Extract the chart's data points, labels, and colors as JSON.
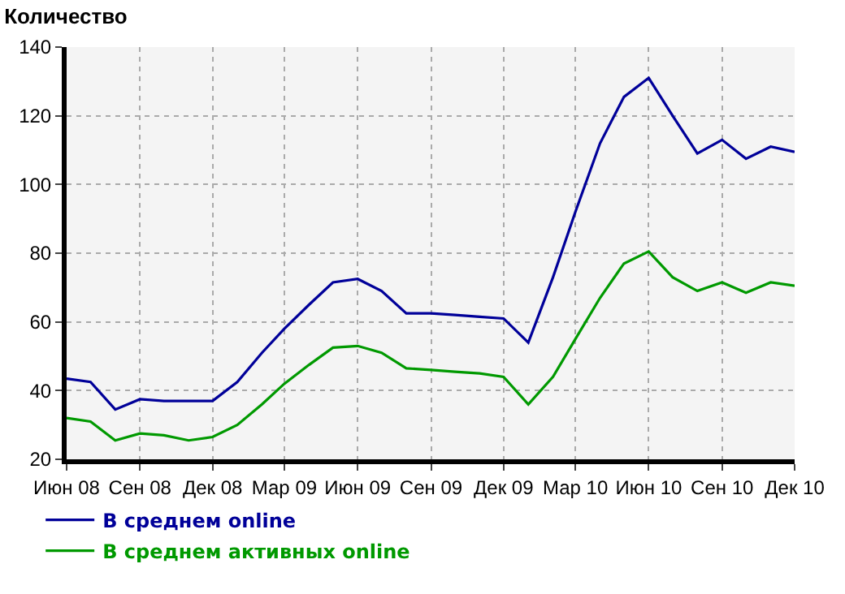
{
  "chart_data": {
    "type": "line",
    "title": "Количество",
    "x": [
      "2008-06",
      "2008-07",
      "2008-08",
      "2008-09",
      "2008-10",
      "2008-11",
      "2008-12",
      "2009-01",
      "2009-02",
      "2009-03",
      "2009-04",
      "2009-05",
      "2009-06",
      "2009-07",
      "2009-08",
      "2009-09",
      "2009-10",
      "2009-11",
      "2009-12",
      "2010-01",
      "2010-02",
      "2010-03",
      "2010-04",
      "2010-05",
      "2010-06",
      "2010-07",
      "2010-08",
      "2010-09",
      "2010-10",
      "2010-11",
      "2010-12"
    ],
    "series": [
      {
        "name": "В среднем online",
        "color": "#000099",
        "values": [
          43.5,
          42.5,
          34.5,
          37.5,
          37,
          37,
          37,
          42.5,
          51,
          58,
          65,
          71.5,
          72.5,
          69,
          62.5,
          62.5,
          62,
          61.5,
          61,
          54,
          73,
          92,
          112,
          125.5,
          131,
          120,
          109,
          113,
          107.5,
          111,
          109.5
        ]
      },
      {
        "name": "В среднем активных online",
        "color": "#009900",
        "values": [
          32,
          31,
          25.5,
          27.5,
          27,
          25.5,
          26.5,
          30,
          36,
          42,
          47.5,
          52.5,
          53,
          51,
          46.5,
          46,
          45.5,
          45,
          44,
          36,
          44,
          55,
          67,
          77,
          80.5,
          73,
          69,
          71.5,
          68.5,
          71.5,
          70.5
        ]
      }
    ],
    "xlim": [
      "2008-06",
      "2010-12"
    ],
    "xticks": [
      {
        "value": "2008-06",
        "label": "Июн 08"
      },
      {
        "value": "2008-09",
        "label": "Сен 08"
      },
      {
        "value": "2008-12",
        "label": "Дек 08"
      },
      {
        "value": "2009-03",
        "label": "Мар 09"
      },
      {
        "value": "2009-06",
        "label": "Июн 09"
      },
      {
        "value": "2009-09",
        "label": "Сен 09"
      },
      {
        "value": "2009-12",
        "label": "Дек 09"
      },
      {
        "value": "2010-03",
        "label": "Мар 10"
      },
      {
        "value": "2010-06",
        "label": "Июн 10"
      },
      {
        "value": "2010-09",
        "label": "Сен 10"
      },
      {
        "value": "2010-12",
        "label": "Дек 10"
      }
    ],
    "ylim": [
      20,
      140
    ],
    "yticks": [
      20,
      40,
      60,
      80,
      100,
      120,
      140
    ],
    "grid": true,
    "legend": "bottom left",
    "marker": "none",
    "line_style": "solid"
  }
}
